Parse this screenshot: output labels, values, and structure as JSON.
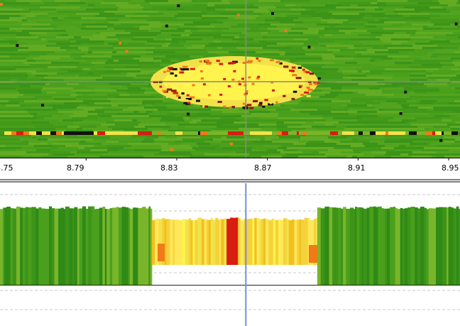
{
  "colors": {
    "green_dark": "#2f8a16",
    "green_mid": "#4aa01c",
    "green_light": "#79b52a",
    "yellow": "#f2e24a",
    "yellow_bright": "#fff34d",
    "orange": "#f07a18",
    "red": "#d81c10",
    "black": "#111111",
    "cursor_line": "#6f8fd8",
    "crosshair": "#8a8a8a"
  },
  "axis": {
    "ticks": [
      {
        "label": "8.75"
      },
      {
        "label": "8.79"
      },
      {
        "label": "8.83"
      },
      {
        "label": "8.87"
      },
      {
        "label": "8.91"
      },
      {
        "label": "8.95"
      }
    ]
  },
  "cursor": {
    "x_value": 8.8605
  },
  "chart_data": {
    "type": "heatmap",
    "x_ticks": [
      "8.75",
      "8.79",
      "8.83",
      "8.87",
      "8.91",
      "8.95"
    ],
    "xlim": [
      8.752,
      8.955
    ],
    "grid": "dashed horizontal lines in lower panel",
    "lower_panel": {
      "type": "bar",
      "segments": [
        {
          "x_start": 8.752,
          "x_end": 8.819,
          "color_class": "green",
          "level": 0.54
        },
        {
          "x_start": 8.819,
          "x_end": 8.852,
          "color_class": "yellow",
          "level": 0.46
        },
        {
          "x_start": 8.852,
          "x_end": 8.857,
          "color_class": "red",
          "level": 0.47
        },
        {
          "x_start": 8.857,
          "x_end": 8.892,
          "color_class": "yellow",
          "level": 0.46
        },
        {
          "x_start": 8.892,
          "x_end": 8.955,
          "color_class": "green",
          "level": 0.54
        }
      ]
    }
  }
}
